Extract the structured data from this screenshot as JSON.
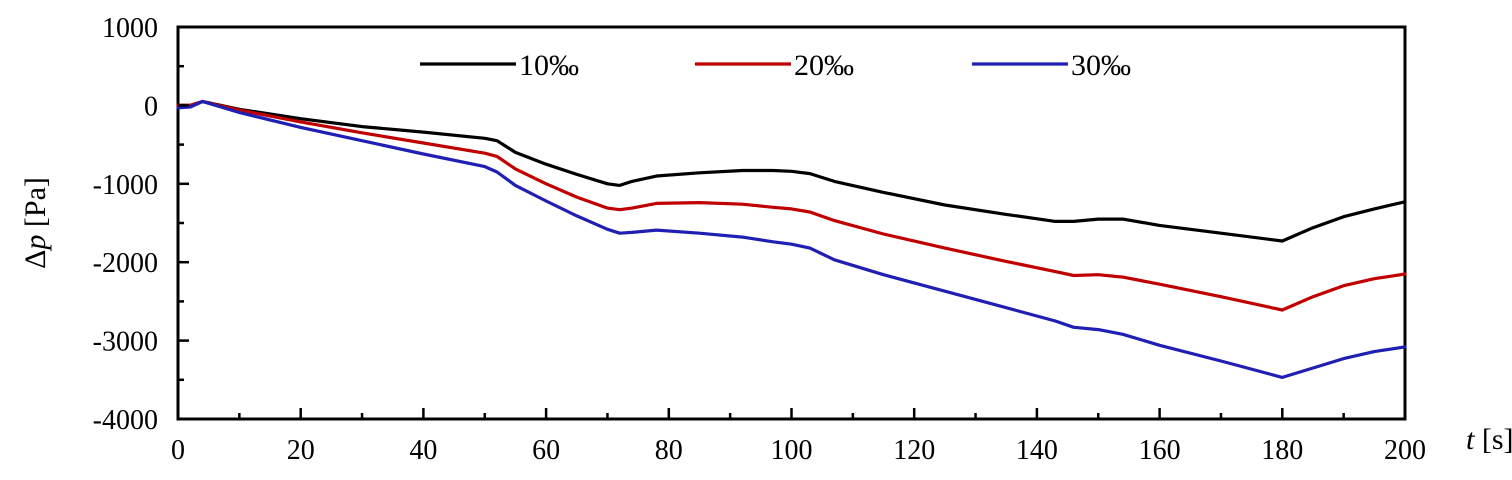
{
  "chart_data": {
    "type": "line",
    "title": "",
    "xlabel_var": "t",
    "xlabel_unit": " [s]",
    "ylabel_prefix": "Δ",
    "ylabel_var": "p",
    "ylabel_unit": " [Pa]",
    "xlim": [
      0,
      200
    ],
    "ylim": [
      -4000,
      1000
    ],
    "xticks": [
      0,
      20,
      40,
      60,
      80,
      100,
      120,
      140,
      160,
      180,
      200
    ],
    "xtick_labels": [
      "0",
      "20",
      "40",
      "60",
      "80",
      "100",
      "120",
      "140",
      "160",
      "180",
      "200"
    ],
    "yticks": [
      -4000,
      -3000,
      -2000,
      -1000,
      0,
      1000
    ],
    "ytick_labels": [
      "-4000",
      "-3000",
      "-2000",
      "-1000",
      "0",
      "1000"
    ],
    "grid": false,
    "legend_position": "top",
    "series": [
      {
        "name": "10‰",
        "color": "#000000",
        "x": [
          0,
          2,
          4,
          10,
          20,
          30,
          40,
          50,
          52,
          55,
          60,
          65,
          70,
          72,
          74,
          78,
          85,
          92,
          97,
          100,
          103,
          107,
          115,
          125,
          135,
          143,
          146,
          150,
          154,
          160,
          170,
          180,
          185,
          190,
          195,
          200
        ],
        "y": [
          0,
          0,
          50,
          -50,
          -170,
          -270,
          -340,
          -420,
          -450,
          -600,
          -750,
          -880,
          -1000,
          -1020,
          -970,
          -900,
          -860,
          -830,
          -830,
          -840,
          -870,
          -970,
          -1110,
          -1270,
          -1390,
          -1480,
          -1480,
          -1450,
          -1450,
          -1530,
          -1630,
          -1730,
          -1560,
          -1420,
          -1320,
          -1230
        ]
      },
      {
        "name": "20‰",
        "color": "#c00000",
        "x": [
          0,
          2,
          4,
          10,
          20,
          30,
          40,
          50,
          52,
          55,
          60,
          65,
          70,
          72,
          74,
          78,
          85,
          92,
          97,
          100,
          103,
          107,
          115,
          125,
          135,
          143,
          146,
          150,
          154,
          160,
          170,
          180,
          185,
          190,
          195,
          200
        ],
        "y": [
          0,
          0,
          50,
          -60,
          -210,
          -350,
          -480,
          -610,
          -650,
          -810,
          -1000,
          -1170,
          -1310,
          -1330,
          -1310,
          -1250,
          -1240,
          -1260,
          -1300,
          -1320,
          -1360,
          -1470,
          -1640,
          -1820,
          -1990,
          -2120,
          -2170,
          -2160,
          -2190,
          -2280,
          -2440,
          -2610,
          -2440,
          -2300,
          -2210,
          -2150
        ]
      },
      {
        "name": "30‰",
        "color": "#1f1fb4",
        "x": [
          0,
          2,
          4,
          10,
          20,
          30,
          40,
          50,
          52,
          55,
          60,
          65,
          70,
          72,
          74,
          78,
          85,
          92,
          97,
          100,
          103,
          107,
          115,
          125,
          135,
          143,
          146,
          150,
          154,
          160,
          170,
          180,
          185,
          190,
          195,
          200
        ],
        "y": [
          -30,
          -20,
          50,
          -90,
          -280,
          -450,
          -620,
          -780,
          -850,
          -1020,
          -1220,
          -1410,
          -1580,
          -1630,
          -1620,
          -1590,
          -1630,
          -1680,
          -1740,
          -1770,
          -1820,
          -1970,
          -2160,
          -2370,
          -2580,
          -2750,
          -2830,
          -2860,
          -2920,
          -3060,
          -3260,
          -3470,
          -3350,
          -3230,
          -3140,
          -3080
        ]
      }
    ]
  }
}
